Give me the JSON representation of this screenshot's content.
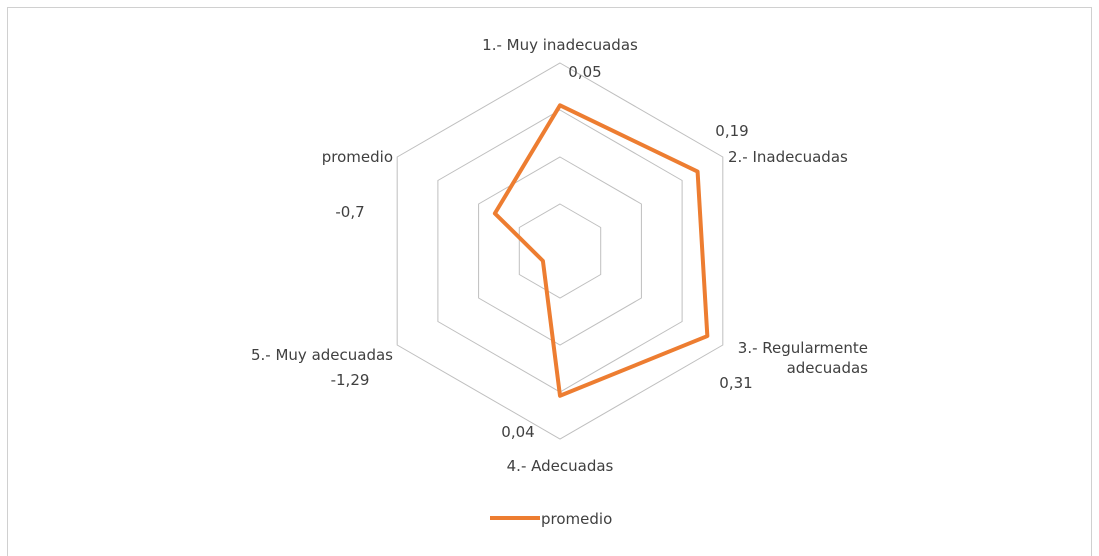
{
  "chart_data": {
    "type": "radar",
    "categories": [
      "1.- Muy inadecuadas",
      "2.- Inadecuadas",
      "3.- Regularmente adecuadas",
      "4.- Adecuadas",
      "5.- Muy adecuadas",
      "promedio"
    ],
    "series": [
      {
        "name": "promedio",
        "color": "#ed7d31",
        "values": [
          0.05,
          0.19,
          0.31,
          0.04,
          -1.29,
          -0.7
        ],
        "value_labels": [
          "0,05",
          "0,19",
          "0,31",
          "0,04",
          "-1,29",
          "-0,7"
        ]
      }
    ],
    "ylim": [
      -1.5,
      0.5
    ],
    "yticks": [
      -1.5,
      -1,
      -0.5,
      0,
      0.5
    ],
    "grid": true,
    "legend": "bottom"
  }
}
